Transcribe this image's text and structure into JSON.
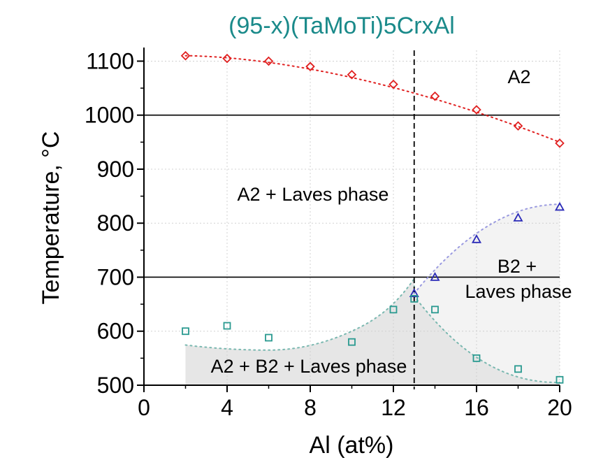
{
  "chart_data": {
    "type": "scatter",
    "title": "(95-x)(TaMoTi)5CrxAl",
    "xlabel": "Al (at%)",
    "ylabel": "Temperature, °C",
    "xlim": [
      0,
      20
    ],
    "ylim": [
      500,
      1120
    ],
    "xticks": [
      0,
      4,
      8,
      12,
      16,
      20
    ],
    "yticks": [
      500,
      600,
      700,
      800,
      900,
      1000,
      1100
    ],
    "grid": true,
    "series": [
      {
        "color": "#e02020",
        "marker": "diamond",
        "x": [
          2,
          4,
          6,
          8,
          10,
          12,
          14,
          16,
          18,
          20
        ],
        "y": [
          1110,
          1105,
          1100,
          1090,
          1075,
          1057,
          1035,
          1010,
          980,
          948
        ]
      },
      {
        "color": "#2a2ab8",
        "marker": "triangle",
        "x": [
          13,
          14,
          16,
          18,
          20
        ],
        "y": [
          670,
          700,
          770,
          810,
          830
        ]
      },
      {
        "color": "#2a9a90",
        "marker": "square",
        "x": [
          2,
          4,
          6,
          10,
          12,
          13,
          14,
          16,
          18,
          20
        ],
        "y": [
          600,
          610,
          588,
          580,
          640,
          660,
          640,
          550,
          530,
          510
        ]
      }
    ],
    "horizontal_lines": [
      1000,
      700
    ],
    "vertical_dashed_line": 13,
    "annotations": [
      {
        "id": "a2",
        "text": "A2"
      },
      {
        "id": "a2_laves",
        "text": "A2 + Laves phase"
      },
      {
        "id": "b2_laves_1",
        "text": "B2 +"
      },
      {
        "id": "b2_laves_2",
        "text": "Laves phase"
      },
      {
        "id": "a2_b2_laves",
        "text": "A2 + B2 + Laves phase"
      }
    ]
  }
}
